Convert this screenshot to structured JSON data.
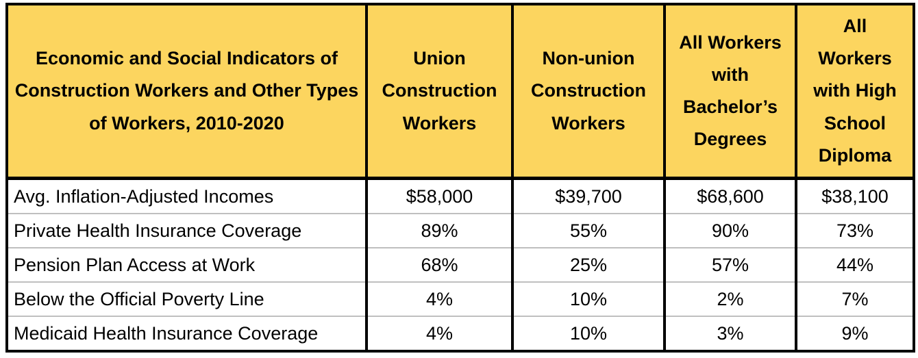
{
  "colors": {
    "header_background": "#FCD55F",
    "grid_black": "#000000",
    "row_divider_gray": "#BFBFBF",
    "cell_background": "#FFFFFF",
    "text": "#000000"
  },
  "chart_data": {
    "type": "table",
    "title": "Economic and Social Indicators of Construction Workers and Other Types of Workers, 2010-2020",
    "columns": [
      "Union Construction Workers",
      "Non-union Construction Workers",
      "All Workers with Bachelor’s Degrees",
      "All Workers with High School Diploma"
    ],
    "rows": [
      {
        "indicator": "Avg. Inflation-Adjusted Incomes",
        "values": [
          "$58,000",
          "$39,700",
          "$68,600",
          "$38,100"
        ]
      },
      {
        "indicator": "Private Health Insurance Coverage",
        "values": [
          "89%",
          "55%",
          "90%",
          "73%"
        ]
      },
      {
        "indicator": "Pension Plan Access at Work",
        "values": [
          "68%",
          "25%",
          "57%",
          "44%"
        ]
      },
      {
        "indicator": "Below the Official Poverty Line",
        "values": [
          "4%",
          "10%",
          "2%",
          "7%"
        ]
      },
      {
        "indicator": "Medicaid Health Insurance Coverage",
        "values": [
          "4%",
          "10%",
          "3%",
          "9%"
        ]
      }
    ],
    "layout": {
      "header_text_bold": true,
      "value_alignment": "center",
      "indicator_alignment": "left"
    }
  }
}
